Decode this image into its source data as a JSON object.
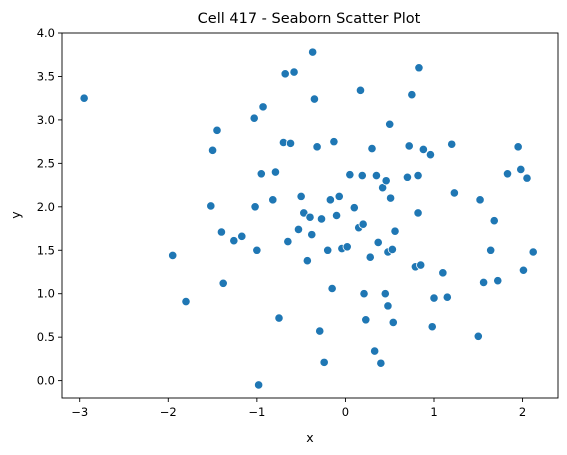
{
  "chart_data": {
    "type": "scatter",
    "title": "Cell 417 - Seaborn Scatter Plot",
    "xlabel": "x",
    "ylabel": "y",
    "xlim": [
      -3.2,
      2.4
    ],
    "ylim": [
      -0.2,
      4.0
    ],
    "xticks": [
      -3,
      -2,
      -1,
      0,
      1,
      2
    ],
    "yticks": [
      0.0,
      0.5,
      1.0,
      1.5,
      2.0,
      2.5,
      3.0,
      3.5,
      4.0
    ],
    "grid": false,
    "marker_color": "#1f77b4",
    "marker_edge_color": "#ffffff",
    "series": [
      {
        "x": [
          -2.95,
          -1.95,
          -1.8,
          -1.52,
          -1.5,
          -1.45,
          -1.4,
          -1.38,
          -1.26,
          -1.17,
          -1.03,
          -1.02,
          -1.0,
          -0.98,
          -0.95,
          -0.93,
          -0.82,
          -0.79,
          -0.75,
          -0.7,
          -0.68,
          -0.65,
          -0.62,
          -0.58,
          -0.53,
          -0.5,
          -0.47,
          -0.43,
          -0.4,
          -0.38,
          -0.37,
          -0.35,
          -0.32,
          -0.29,
          -0.27,
          -0.24,
          -0.2,
          -0.17,
          -0.15,
          -0.13,
          -0.1,
          -0.07,
          -0.04,
          0.02,
          0.05,
          0.1,
          0.15,
          0.17,
          0.19,
          0.2,
          0.21,
          0.23,
          0.28,
          0.3,
          0.33,
          0.35,
          0.37,
          0.4,
          0.42,
          0.45,
          0.46,
          0.48,
          0.48,
          0.5,
          0.51,
          0.53,
          0.54,
          0.56,
          0.7,
          0.72,
          0.75,
          0.79,
          0.82,
          0.83,
          0.85,
          0.88,
          0.96,
          0.98,
          1.0,
          1.1,
          1.15,
          1.2,
          1.23,
          1.5,
          1.52,
          1.56,
          1.64,
          1.68,
          1.72,
          1.83,
          1.95,
          1.98,
          2.01,
          2.05,
          2.12,
          0.82
        ],
        "y": [
          3.25,
          1.44,
          0.91,
          2.01,
          2.65,
          2.88,
          1.71,
          1.12,
          1.61,
          1.66,
          3.02,
          2.0,
          1.5,
          -0.05,
          2.38,
          3.15,
          2.08,
          2.4,
          0.72,
          2.74,
          3.53,
          1.6,
          2.73,
          3.55,
          1.74,
          2.12,
          1.93,
          1.38,
          1.88,
          1.68,
          3.78,
          3.24,
          2.69,
          0.57,
          1.86,
          0.21,
          1.5,
          2.08,
          1.06,
          2.75,
          1.9,
          2.12,
          1.52,
          1.54,
          2.37,
          1.99,
          1.76,
          3.34,
          2.36,
          1.8,
          1.0,
          0.7,
          1.42,
          2.67,
          0.34,
          2.36,
          1.59,
          0.2,
          2.22,
          1.0,
          2.3,
          1.48,
          0.86,
          2.95,
          2.1,
          1.51,
          0.67,
          1.72,
          2.34,
          2.7,
          3.29,
          1.31,
          2.36,
          3.6,
          1.33,
          2.66,
          2.6,
          0.62,
          0.95,
          1.24,
          0.96,
          2.72,
          2.16,
          0.51,
          2.08,
          1.13,
          1.5,
          1.84,
          1.15,
          2.38,
          2.69,
          2.43,
          1.27,
          2.33,
          1.48,
          1.93
        ]
      }
    ]
  }
}
